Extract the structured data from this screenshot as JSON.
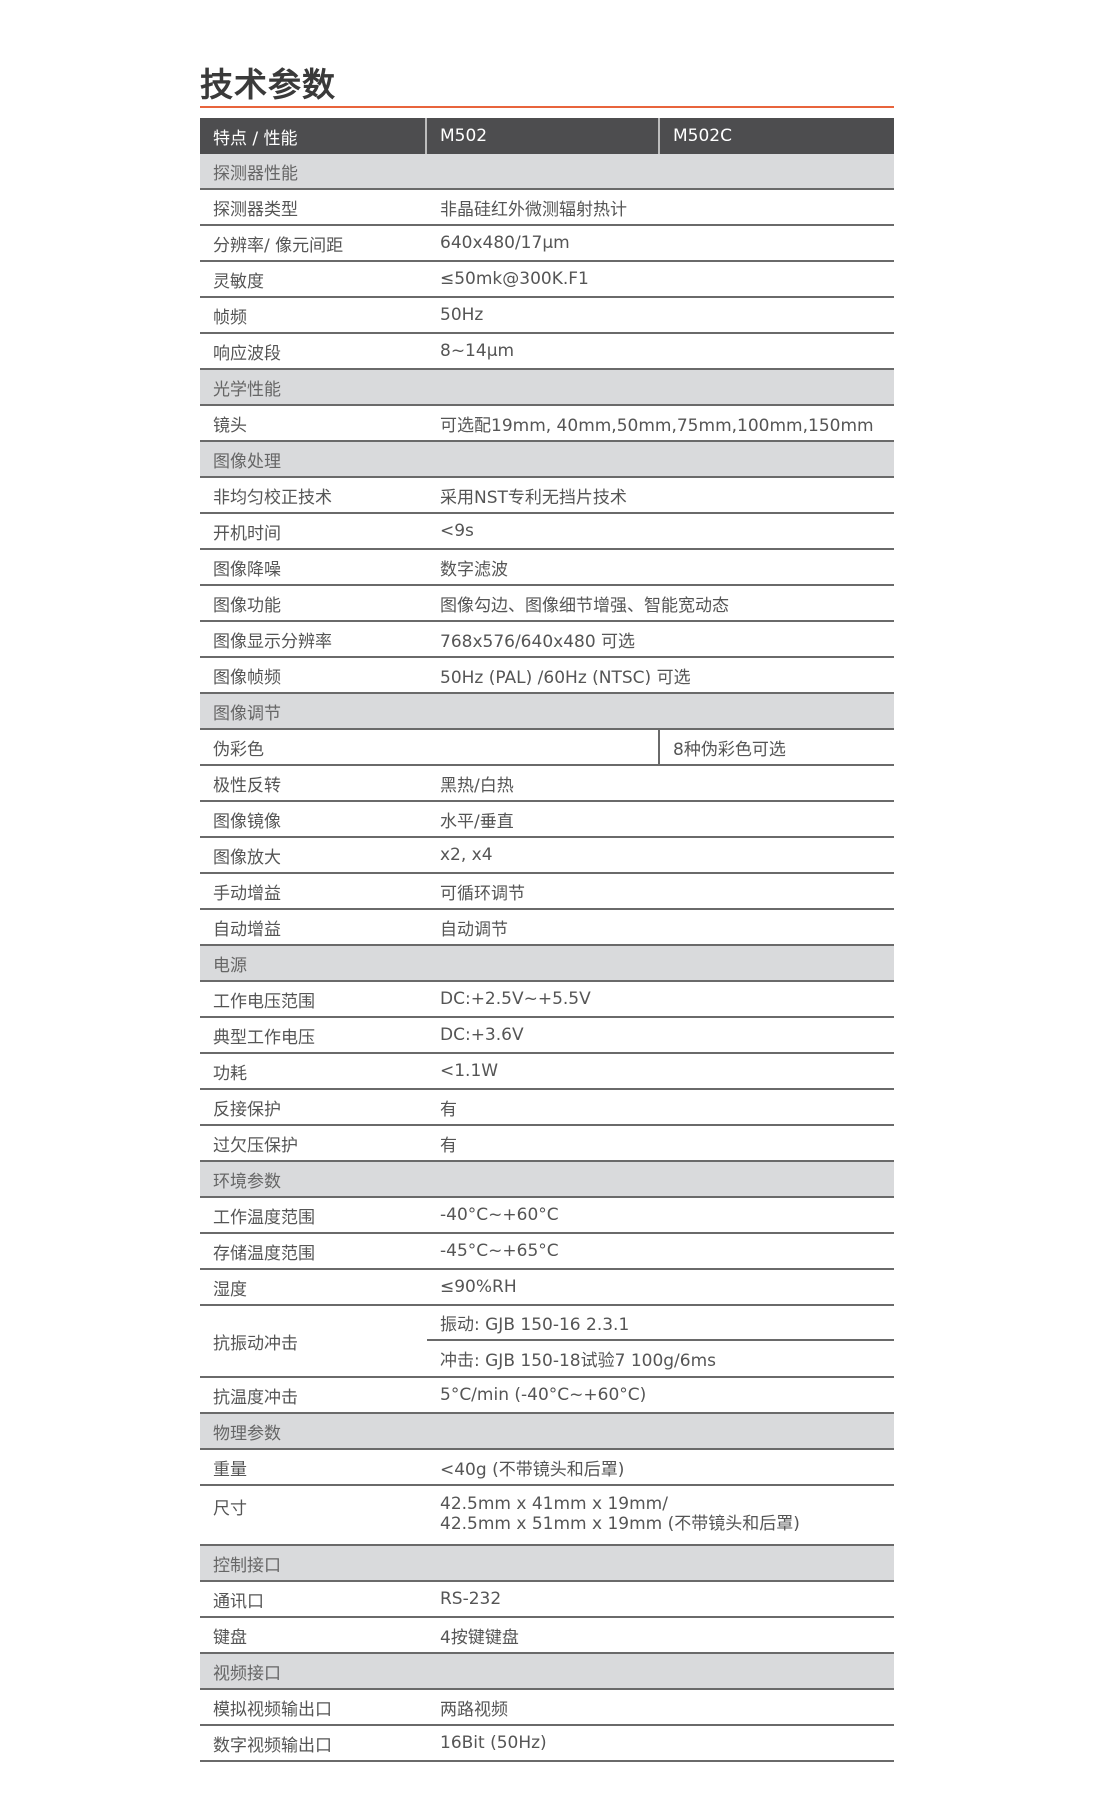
{
  "title": "技术参数",
  "colors": {
    "accent": "#e8643c",
    "header_bg": "#4d4d4f",
    "section_bg": "#d9dadc"
  },
  "header": [
    "特点 / 性能",
    "M502",
    "M502C"
  ],
  "rows": [
    {
      "type": "section",
      "label": "探测器性能"
    },
    {
      "type": "row",
      "label": "探测器类型",
      "value": "非晶硅红外微测辐射热计"
    },
    {
      "type": "row",
      "label": "分辨率/ 像元间距",
      "value": "640x480/17µm"
    },
    {
      "type": "row",
      "label": "灵敏度",
      "value": "≤50mk@300K.F1"
    },
    {
      "type": "row",
      "label": "帧频",
      "value": "50Hz"
    },
    {
      "type": "row",
      "label": "响应波段",
      "value": "8~14µm"
    },
    {
      "type": "section",
      "label": "光学性能"
    },
    {
      "type": "row",
      "label": "镜头",
      "value": "可选配19mm, 40mm,50mm,75mm,100mm,150mm"
    },
    {
      "type": "section",
      "label": "图像处理"
    },
    {
      "type": "row",
      "label": "非均匀校正技术",
      "value": "采用NST专利无挡片技术"
    },
    {
      "type": "row",
      "label": "开机时间",
      "value": "<9s"
    },
    {
      "type": "row",
      "label": "图像降噪",
      "value": "数字滤波"
    },
    {
      "type": "row",
      "label": "图像功能",
      "value": "图像勾边、图像细节增强、智能宽动态"
    },
    {
      "type": "row",
      "label": "图像显示分辨率",
      "value": "768x576/640x480 可选"
    },
    {
      "type": "row",
      "label": "图像帧频",
      "value": "50Hz (PAL) /60Hz (NTSC) 可选"
    },
    {
      "type": "section",
      "label": "图像调节"
    },
    {
      "type": "split",
      "label": "伪彩色",
      "value_m502": "",
      "value_m502c": "8种伪彩色可选"
    },
    {
      "type": "row",
      "label": "极性反转",
      "value": "黑热/白热"
    },
    {
      "type": "row",
      "label": "图像镜像",
      "value": "水平/垂直"
    },
    {
      "type": "row",
      "label": "图像放大",
      "value": "x2, x4"
    },
    {
      "type": "row",
      "label": "手动增益",
      "value": "可循环调节"
    },
    {
      "type": "row",
      "label": "自动增益",
      "value": "自动调节"
    },
    {
      "type": "section",
      "label": "电源"
    },
    {
      "type": "row",
      "label": "工作电压范围",
      "value": "DC:+2.5V~+5.5V"
    },
    {
      "type": "row",
      "label": "典型工作电压",
      "value": "DC:+3.6V"
    },
    {
      "type": "row",
      "label": "功耗",
      "value": "<1.1W"
    },
    {
      "type": "row",
      "label": "反接保护",
      "value": "有"
    },
    {
      "type": "row",
      "label": "过欠压保护",
      "value": "有"
    },
    {
      "type": "section",
      "label": "环境参数"
    },
    {
      "type": "row",
      "label": "工作温度范围",
      "value": "-40°C~+60°C"
    },
    {
      "type": "row",
      "label": "存储温度范围",
      "value": "-45°C~+65°C"
    },
    {
      "type": "row",
      "label": "湿度",
      "value": "≤90%RH"
    },
    {
      "type": "multi",
      "label": "抗振动冲击",
      "values": [
        "振动: GJB 150-16 2.3.1",
        "冲击: GJB 150-18试验7 100g/6ms"
      ]
    },
    {
      "type": "row",
      "label": "抗温度冲击",
      "value": "5°C/min (-40°C~+60°C)"
    },
    {
      "type": "section",
      "label": "物理参数"
    },
    {
      "type": "row",
      "label": "重量",
      "value": "<40g (不带镜头和后罩)"
    },
    {
      "type": "tall",
      "label": "尺寸",
      "values": [
        "42.5mm x 41mm x 19mm/",
        "42.5mm x 51mm x 19mm (不带镜头和后罩)"
      ]
    },
    {
      "type": "section",
      "label": "控制接口"
    },
    {
      "type": "row",
      "label": "通讯口",
      "value": "RS-232"
    },
    {
      "type": "row",
      "label": "键盘",
      "value": "4按键键盘"
    },
    {
      "type": "section",
      "label": "视频接口"
    },
    {
      "type": "row",
      "label": "模拟视频输出口",
      "value": "两路视频"
    },
    {
      "type": "row",
      "label": "数字视频输出口",
      "value": "16Bit (50Hz)"
    }
  ]
}
